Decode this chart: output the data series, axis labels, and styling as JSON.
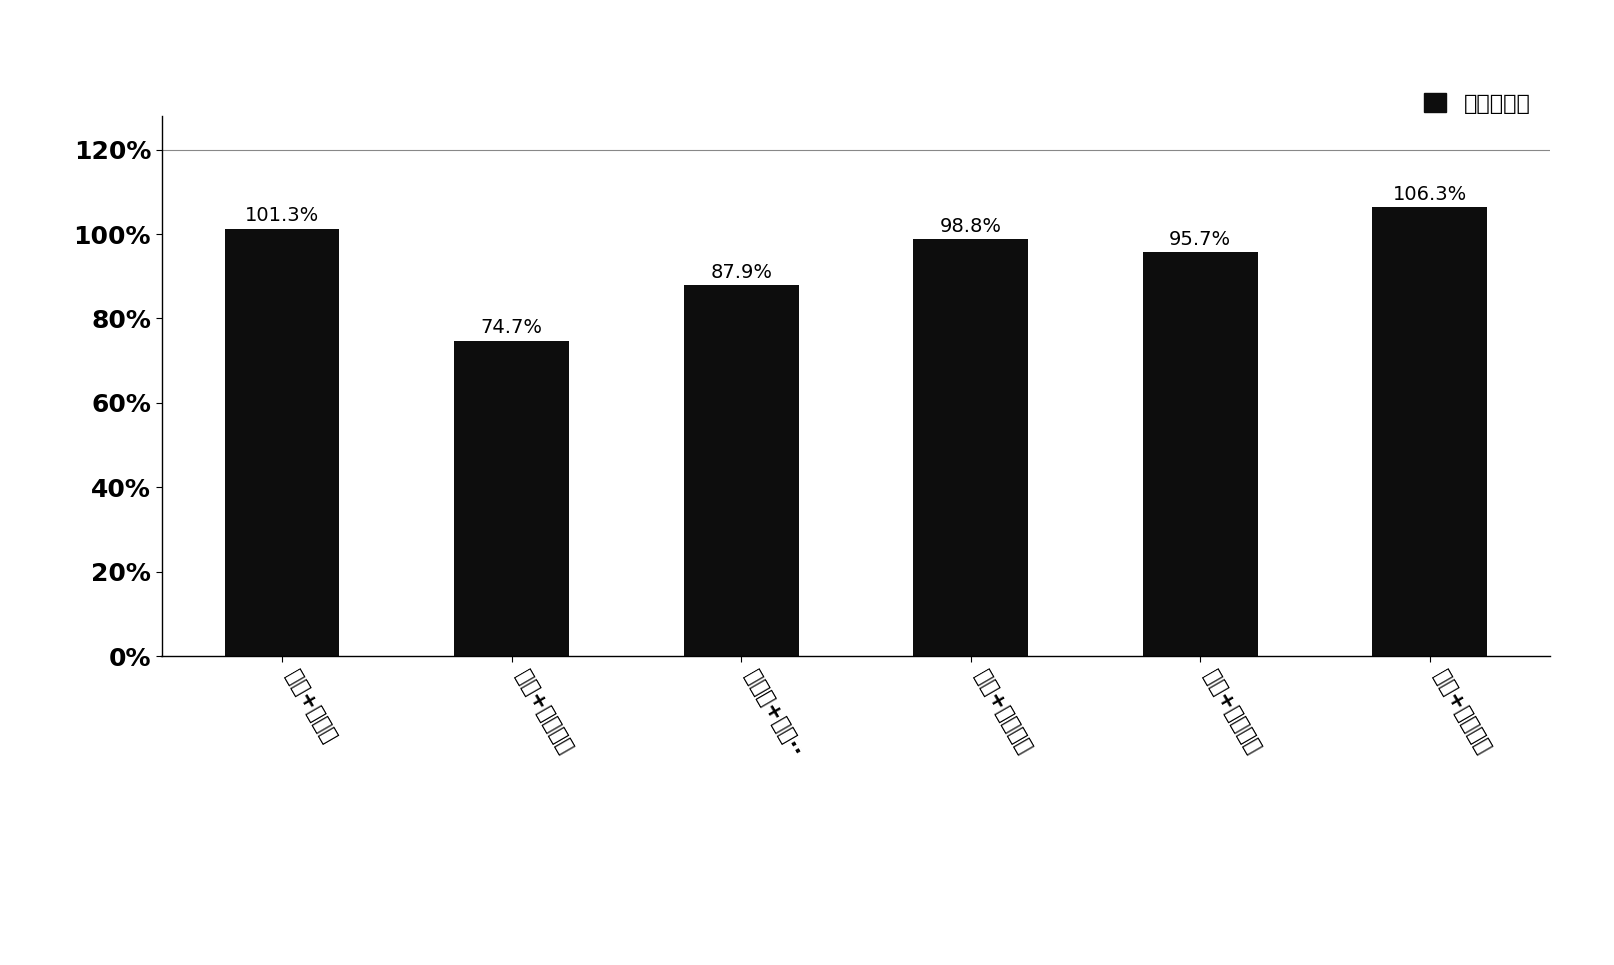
{
  "categories": [
    "丙酮+正己烷",
    "丙酮+二氯甲烷",
    "环己烷+乙酸··",
    "甲醇+二氯甲烷",
    "甲醇+乙酸乙酯",
    "乙腈+二氯甲烷"
  ],
  "values": [
    1.013,
    0.747,
    0.879,
    0.988,
    0.957,
    1.063
  ],
  "labels": [
    "101.3%",
    "74.7%",
    "87.9%",
    "98.8%",
    "95.7%",
    "106.3%"
  ],
  "bar_color": "#0d0d0d",
  "legend_label": "间二硝基苯",
  "ylim": [
    0,
    1.28
  ],
  "yticks": [
    0,
    0.2,
    0.4,
    0.6,
    0.8,
    1.0,
    1.2
  ],
  "ytick_labels": [
    "0%",
    "20%",
    "40%",
    "60%",
    "80%",
    "100%",
    "120%"
  ],
  "background_color": "#ffffff",
  "label_fontsize": 14,
  "tick_fontsize": 18,
  "xtick_fontsize": 15,
  "legend_fontsize": 16
}
